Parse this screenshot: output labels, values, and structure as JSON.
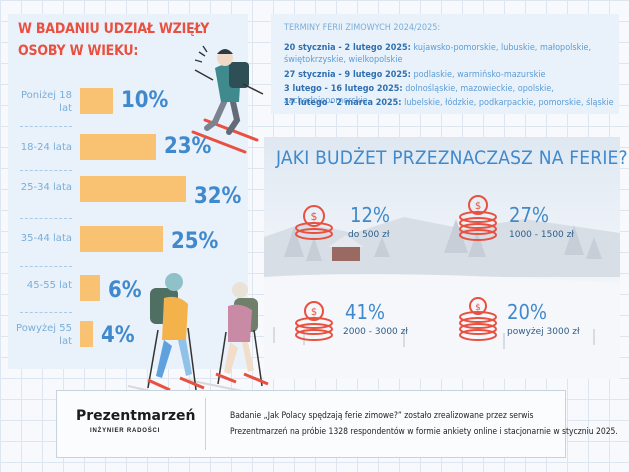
{
  "age_panel": {
    "title": "W BADANIU UDZIAŁ WZIĘŁY OSOBY W WIEKU:",
    "groups": [
      {
        "label": "Poniżej 18 lat",
        "value": "10%"
      },
      {
        "label": "18-24 lata",
        "value": "23%"
      },
      {
        "label": "25-34 lata",
        "value": "32%"
      },
      {
        "label": "35-44 lata",
        "value": "25%"
      },
      {
        "label": "45-55 lat",
        "value": "6%"
      },
      {
        "label": "Powyżej 55 lat",
        "value": "4%"
      }
    ]
  },
  "terms": {
    "title": "TERMINY FERII ZIMOWYCH 2024/2025:",
    "lines": [
      {
        "dates": "20 stycznia - 2 lutego 2025:",
        "regions": "kujawsko-pomorskie, lubuskie, małopolskie, świętokrzyskie, wielkopolskie"
      },
      {
        "dates": "27 stycznia - 9 lutego 2025:",
        "regions": "podlaskie, warmińsko-mazurskie"
      },
      {
        "dates": "3 lutego - 16 lutego 2025:",
        "regions": "dolnośląskie, mazowieckie, opolskie, zachodniopomorskie"
      },
      {
        "dates": "17 lutego - 2 marca 2025:",
        "regions": "lubelskie, łódzkie, podkarpackie, pomorskie, śląskie"
      }
    ]
  },
  "budget": {
    "title": "JAKI BUDŻET PRZEZNACZASZ NA FERIE?",
    "items": [
      {
        "value": "12%",
        "label": "do 500 zł"
      },
      {
        "value": "27%",
        "label": "1000 - 1500 zł"
      },
      {
        "value": "41%",
        "label": "2000 - 3000 zł"
      },
      {
        "value": "20%",
        "label": "powyżej 3000 zł"
      }
    ]
  },
  "footer": {
    "logo": "Prezentmarzeń",
    "logo_sub": "INŻYNIER RADOŚCI",
    "note_line1": "Badanie „Jak Polacy spędzają ferie zimowe?” zostało zrealizowane przez serwis",
    "note_line2": "Prezentmarzeń na próbie 1328 respondentów w formie ankiety online i stacjonarnie w styczniu 2025."
  },
  "colors": {
    "accent_red": "#e9503f",
    "accent_blue": "#3f89cc",
    "bar_orange": "#f9c172"
  },
  "chart_data": [
    {
      "type": "bar",
      "title": "W BADANIU UDZIAŁ WZIĘŁY OSOBY W WIEKU:",
      "categories": [
        "Poniżej 18 lat",
        "18-24 lata",
        "25-34 lata",
        "35-44 lata",
        "45-55 lat",
        "Powyżej 55 lat"
      ],
      "values": [
        10,
        23,
        32,
        25,
        6,
        4
      ],
      "orientation": "horizontal"
    },
    {
      "type": "table",
      "title": "JAKI BUDŻET PRZEZNACZASZ NA FERIE?",
      "categories": [
        "do 500 zł",
        "1000 - 1500 zł",
        "2000 - 3000 zł",
        "powyżej 3000 zł"
      ],
      "values": [
        12,
        27,
        41,
        20
      ]
    }
  ]
}
